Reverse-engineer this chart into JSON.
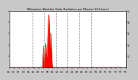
{
  "title": "Milwaukee Weather Solar Radiation per Minute (24 Hours)",
  "bg_color": "#c8c8c8",
  "plot_bg_color": "#ffffff",
  "fill_color": "#ff0000",
  "line_color": "#dd0000",
  "grid_color": "#888888",
  "xlim": [
    0,
    1440
  ],
  "ylim": [
    0,
    1.0
  ],
  "y_ticks": [
    0.2,
    0.4,
    0.6,
    0.8,
    1.0
  ],
  "y_tick_labels": [
    ".2",
    ".4",
    ".6",
    ".8",
    "1"
  ],
  "vgrid_positions": [
    288,
    432,
    576,
    720,
    864,
    1008
  ],
  "solar_data": [
    0,
    0,
    0,
    0,
    0,
    0,
    0,
    0,
    0,
    0,
    0,
    0,
    0,
    0,
    0,
    0,
    0,
    0,
    0,
    0,
    0,
    0,
    0,
    0,
    0,
    0,
    0,
    0,
    0,
    0,
    0,
    0,
    0,
    0,
    0,
    0,
    0,
    0,
    0,
    0,
    0,
    0,
    0,
    0,
    0,
    0,
    0,
    0,
    0,
    0,
    0,
    0,
    0,
    0,
    0,
    0,
    0,
    0,
    0,
    0,
    0,
    0,
    0,
    0,
    0,
    0,
    0,
    0,
    0,
    0,
    0,
    0,
    0,
    0,
    0,
    0,
    0,
    0,
    0,
    0,
    0,
    0,
    0,
    0,
    0,
    0,
    0,
    0,
    0,
    0,
    0,
    0,
    0,
    0,
    0,
    0,
    0,
    0,
    0,
    0,
    0,
    0,
    0,
    0,
    0,
    0,
    0,
    0,
    0,
    0,
    0,
    0,
    0,
    0,
    0,
    0,
    0,
    0,
    0,
    0,
    0,
    0,
    0,
    0,
    0,
    0,
    0,
    0,
    0,
    0,
    0,
    0,
    0,
    0,
    0,
    0,
    0,
    0,
    0,
    0,
    0,
    0,
    0,
    0,
    0,
    0,
    0,
    0,
    0,
    0,
    0,
    0,
    0,
    0,
    0,
    0,
    0,
    0,
    0,
    0,
    0,
    0,
    0,
    0,
    0,
    0,
    0,
    0,
    0,
    0,
    0,
    0,
    0,
    0,
    0,
    0,
    0,
    0,
    0,
    0,
    0,
    0,
    0,
    0,
    0,
    0,
    0,
    0,
    0,
    0,
    0,
    0,
    0,
    0,
    0,
    0,
    0,
    0,
    0,
    0,
    0,
    0,
    0,
    0,
    0,
    0,
    0,
    0,
    0,
    0,
    0,
    0,
    0,
    0,
    0,
    0,
    0,
    0,
    0,
    0,
    0,
    0,
    0,
    0,
    0,
    0,
    0,
    0,
    0,
    0,
    0,
    0,
    0,
    0,
    0,
    0,
    0,
    0,
    0,
    0,
    0,
    0,
    0,
    0,
    0,
    0,
    0,
    0,
    0,
    0,
    0,
    0,
    0,
    0,
    0,
    0,
    0,
    0,
    0,
    0,
    0,
    0,
    0,
    0,
    0,
    0,
    0,
    0,
    0,
    0,
    0,
    0,
    0,
    0,
    0,
    0,
    0,
    0,
    0,
    0,
    0,
    0,
    0,
    0,
    0,
    0,
    0,
    0,
    0,
    0,
    0,
    0,
    0,
    0,
    0,
    0,
    0,
    0,
    0,
    0,
    0,
    0,
    0,
    0,
    0,
    0,
    0,
    0,
    0,
    0,
    0,
    0,
    0,
    0,
    0,
    0,
    0,
    0,
    0,
    0,
    0,
    0,
    0,
    0,
    0,
    0,
    0,
    0,
    0,
    0,
    0,
    0,
    0,
    0,
    0,
    0,
    0,
    0,
    0,
    0,
    0,
    0,
    0,
    0,
    0,
    0,
    0,
    0,
    0,
    0,
    0,
    0,
    0,
    0,
    0,
    0,
    0,
    0,
    0,
    0,
    0,
    0,
    0,
    0,
    0,
    0,
    0,
    0,
    0,
    0,
    0,
    0,
    0,
    0,
    0,
    0,
    0,
    0,
    0,
    0,
    0,
    0,
    0,
    0,
    0,
    0,
    0,
    0,
    0,
    0,
    0,
    0,
    0,
    0,
    0,
    0,
    0,
    0,
    0,
    0,
    0.0,
    0.01,
    0.02,
    0.03,
    0.04,
    0.06,
    0.08,
    0.1,
    0.12,
    0.15,
    0.18,
    0.21,
    0.24,
    0.27,
    0.3,
    0.33,
    0.35,
    0.37,
    0.39,
    0.36,
    0.32,
    0.28,
    0.25,
    0.22,
    0.2,
    0.18,
    0.16,
    0.15,
    0.14,
    0.13,
    0.12,
    0.11,
    0.12,
    0.13,
    0.15,
    0.17,
    0.19,
    0.21,
    0.23,
    0.25,
    0.27,
    0.29,
    0.31,
    0.33,
    0.35,
    0.37,
    0.39,
    0.41,
    0.43,
    0.4,
    0.37,
    0.34,
    0.31,
    0.28,
    0.25,
    0.23,
    0.21,
    0.2,
    0.19,
    0.18,
    0.2,
    0.22,
    0.25,
    0.28,
    0.31,
    0.34,
    0.37,
    0.4,
    0.43,
    0.46,
    0.5,
    0.54,
    0.58,
    0.62,
    0.65,
    0.68,
    0.71,
    0.74,
    0.77,
    0.8,
    0.83,
    0.86,
    0.88,
    0.9,
    0.91,
    0.92,
    0.93,
    0.94,
    0.92,
    0.89,
    0.86,
    0.82,
    0.78,
    0.74,
    0.69,
    0.64,
    0.59,
    0.54,
    0.49,
    0.44,
    0.39,
    0.34,
    0.3,
    0.37,
    0.44,
    0.5,
    0.55,
    0.58,
    0.6,
    0.61,
    0.6,
    0.58,
    0.55,
    0.52,
    0.49,
    0.46,
    0.43,
    0.4,
    0.37,
    0.34,
    0.31,
    0.28,
    0.25,
    0.22,
    0.19,
    0.16,
    0.13,
    0.1,
    0.08,
    0.06,
    0.04,
    0.03,
    0.02,
    0.01,
    0.0,
    0,
    0,
    0,
    0,
    0,
    0,
    0,
    0,
    0,
    0,
    0,
    0,
    0,
    0,
    0,
    0,
    0,
    0,
    0,
    0,
    0,
    0,
    0,
    0,
    0,
    0,
    0,
    0,
    0,
    0,
    0,
    0,
    0,
    0,
    0,
    0,
    0,
    0,
    0,
    0,
    0,
    0,
    0,
    0,
    0,
    0,
    0,
    0,
    0,
    0,
    0,
    0,
    0,
    0,
    0,
    0,
    0,
    0,
    0,
    0,
    0,
    0,
    0,
    0,
    0,
    0,
    0,
    0,
    0,
    0,
    0,
    0,
    0,
    0,
    0,
    0,
    0,
    0,
    0,
    0,
    0,
    0,
    0,
    0,
    0,
    0,
    0,
    0,
    0,
    0,
    0,
    0,
    0,
    0,
    0,
    0,
    0,
    0,
    0,
    0,
    0,
    0,
    0,
    0,
    0,
    0,
    0,
    0,
    0,
    0,
    0,
    0,
    0,
    0,
    0,
    0,
    0,
    0,
    0,
    0,
    0,
    0,
    0,
    0,
    0,
    0,
    0,
    0,
    0,
    0,
    0,
    0,
    0,
    0,
    0,
    0,
    0,
    0,
    0,
    0,
    0,
    0,
    0,
    0,
    0,
    0,
    0,
    0,
    0,
    0,
    0,
    0,
    0,
    0,
    0,
    0,
    0,
    0,
    0,
    0,
    0,
    0,
    0,
    0,
    0,
    0,
    0,
    0,
    0,
    0,
    0,
    0,
    0,
    0,
    0,
    0,
    0,
    0,
    0,
    0,
    0,
    0,
    0,
    0,
    0,
    0,
    0,
    0,
    0,
    0,
    0,
    0,
    0,
    0,
    0,
    0,
    0,
    0,
    0,
    0,
    0,
    0,
    0,
    0,
    0,
    0,
    0,
    0,
    0,
    0,
    0,
    0,
    0,
    0,
    0,
    0,
    0,
    0,
    0,
    0,
    0,
    0,
    0,
    0,
    0,
    0,
    0,
    0,
    0,
    0,
    0,
    0,
    0,
    0,
    0,
    0,
    0,
    0,
    0,
    0,
    0,
    0,
    0,
    0,
    0,
    0,
    0,
    0,
    0,
    0,
    0,
    0,
    0,
    0,
    0,
    0,
    0,
    0,
    0,
    0,
    0,
    0,
    0,
    0,
    0,
    0,
    0,
    0,
    0,
    0,
    0,
    0,
    0,
    0,
    0,
    0,
    0,
    0,
    0,
    0,
    0,
    0,
    0,
    0,
    0,
    0,
    0,
    0,
    0,
    0,
    0,
    0,
    0,
    0,
    0,
    0,
    0,
    0,
    0,
    0,
    0,
    0,
    0,
    0,
    0,
    0,
    0,
    0,
    0,
    0,
    0,
    0,
    0,
    0,
    0,
    0,
    0,
    0,
    0,
    0,
    0,
    0,
    0,
    0,
    0,
    0,
    0,
    0,
    0,
    0,
    0,
    0,
    0,
    0,
    0,
    0,
    0,
    0,
    0,
    0,
    0,
    0,
    0,
    0,
    0,
    0,
    0,
    0,
    0,
    0,
    0,
    0,
    0,
    0,
    0,
    0,
    0,
    0,
    0,
    0,
    0,
    0,
    0,
    0,
    0,
    0,
    0,
    0,
    0,
    0,
    0,
    0,
    0,
    0,
    0,
    0,
    0,
    0,
    0,
    0,
    0,
    0,
    0,
    0,
    0,
    0,
    0,
    0,
    0,
    0,
    0,
    0,
    0,
    0,
    0,
    0,
    0,
    0,
    0,
    0,
    0,
    0,
    0,
    0,
    0,
    0,
    0,
    0,
    0,
    0,
    0,
    0,
    0,
    0,
    0,
    0,
    0,
    0,
    0,
    0,
    0,
    0,
    0,
    0,
    0,
    0,
    0,
    0,
    0,
    0,
    0,
    0,
    0,
    0,
    0,
    0,
    0,
    0,
    0,
    0,
    0,
    0,
    0,
    0,
    0,
    0,
    0,
    0,
    0,
    0,
    0,
    0,
    0,
    0,
    0,
    0,
    0,
    0,
    0,
    0,
    0,
    0,
    0,
    0,
    0,
    0,
    0,
    0,
    0,
    0,
    0,
    0,
    0,
    0,
    0,
    0,
    0,
    0,
    0,
    0,
    0,
    0,
    0,
    0,
    0,
    0,
    0,
    0,
    0,
    0,
    0,
    0,
    0,
    0,
    0,
    0,
    0,
    0,
    0,
    0,
    0,
    0,
    0,
    0,
    0,
    0,
    0,
    0,
    0,
    0,
    0,
    0,
    0,
    0,
    0,
    0,
    0,
    0,
    0,
    0,
    0,
    0,
    0,
    0,
    0,
    0,
    0,
    0,
    0,
    0,
    0,
    0,
    0,
    0,
    0,
    0,
    0,
    0,
    0,
    0,
    0,
    0,
    0,
    0,
    0,
    0,
    0,
    0,
    0,
    0,
    0,
    0,
    0,
    0,
    0,
    0,
    0,
    0,
    0,
    0,
    0,
    0,
    0,
    0,
    0,
    0,
    0,
    0,
    0,
    0,
    0,
    0,
    0,
    0,
    0,
    0,
    0,
    0,
    0,
    0,
    0,
    0,
    0,
    0,
    0,
    0,
    0,
    0,
    0,
    0,
    0,
    0,
    0,
    0,
    0,
    0,
    0,
    0,
    0,
    0,
    0,
    0,
    0,
    0,
    0,
    0,
    0,
    0,
    0,
    0,
    0,
    0,
    0,
    0,
    0,
    0,
    0,
    0,
    0,
    0,
    0,
    0,
    0,
    0,
    0,
    0,
    0,
    0,
    0,
    0,
    0,
    0,
    0,
    0,
    0,
    0,
    0,
    0,
    0,
    0,
    0,
    0,
    0,
    0,
    0,
    0,
    0,
    0,
    0,
    0,
    0,
    0,
    0,
    0,
    0,
    0,
    0,
    0,
    0,
    0,
    0,
    0,
    0,
    0,
    0,
    0,
    0,
    0,
    0,
    0,
    0,
    0,
    0,
    0,
    0,
    0,
    0,
    0,
    0,
    0,
    0,
    0,
    0,
    0,
    0,
    0,
    0,
    0,
    0,
    0,
    0,
    0,
    0,
    0,
    0,
    0,
    0,
    0,
    0,
    0,
    0,
    0,
    0,
    0,
    0,
    0,
    0,
    0,
    0,
    0,
    0,
    0,
    0,
    0,
    0,
    0,
    0,
    0,
    0,
    0,
    0,
    0,
    0,
    0,
    0,
    0,
    0,
    0,
    0,
    0,
    0,
    0,
    0,
    0,
    0,
    0,
    0,
    0,
    0,
    0,
    0,
    0,
    0,
    0,
    0,
    0,
    0,
    0,
    0,
    0,
    0,
    0,
    0,
    0,
    0,
    0,
    0,
    0,
    0,
    0,
    0,
    0,
    0,
    0,
    0,
    0,
    0,
    0,
    0,
    0,
    0,
    0,
    0,
    0,
    0,
    0,
    0,
    0,
    0,
    0,
    0,
    0,
    0,
    0,
    0,
    0,
    0,
    0,
    0,
    0,
    0,
    0,
    0,
    0,
    0,
    0,
    0,
    0,
    0,
    0,
    0,
    0,
    0,
    0,
    0,
    0,
    0,
    0,
    0,
    0,
    0,
    0,
    0,
    0,
    0,
    0,
    0,
    0,
    0,
    0,
    0,
    0,
    0,
    0,
    0,
    0,
    0,
    0,
    0,
    0,
    0,
    0,
    0,
    0,
    0,
    0,
    0,
    0,
    0,
    0,
    0,
    0,
    0,
    0,
    0
  ]
}
